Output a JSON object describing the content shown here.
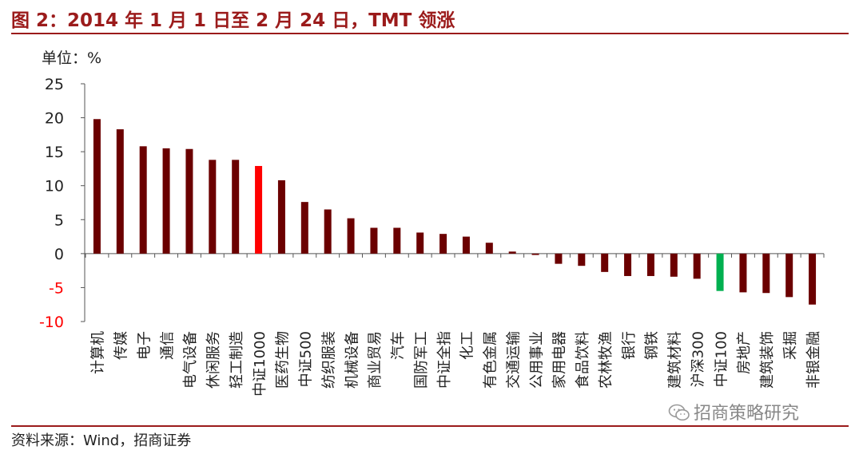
{
  "title": "图 2：2014 年 1 月 1 日至 2 月 24 日，TMT 领涨",
  "unit_label": "单位：%",
  "source": "资料来源：Wind，招商证券",
  "watermark": "招商策略研究",
  "watermark_icon": "wechat-icon",
  "colors": {
    "default": "#6b0000",
    "highlight_red": "#ff0000",
    "highlight_green": "#00b050",
    "axis": "#555555",
    "negative_tick": "#ff0000",
    "title": "#9b1b1b"
  },
  "chart_data": {
    "type": "bar",
    "categories": [
      "计算机",
      "传媒",
      "电子",
      "通信",
      "电气设备",
      "休闲服务",
      "轻工制造",
      "中证1000",
      "医药生物",
      "中证500",
      "纺织服装",
      "机械设备",
      "商业贸易",
      "汽车",
      "国防军工",
      "中证全指",
      "化工",
      "有色金属",
      "交通运输",
      "公用事业",
      "家用电器",
      "食品饮料",
      "农林牧渔",
      "银行",
      "钢铁",
      "建筑材料",
      "沪深300",
      "中证100",
      "房地产",
      "建筑装饰",
      "采掘",
      "非银金融"
    ],
    "values": [
      19.8,
      18.3,
      15.8,
      15.5,
      15.4,
      13.8,
      13.8,
      12.9,
      10.8,
      7.6,
      6.5,
      5.2,
      3.8,
      3.8,
      3.1,
      2.9,
      2.5,
      1.6,
      0.3,
      -0.2,
      -1.5,
      -1.8,
      -2.7,
      -3.3,
      -3.3,
      -3.4,
      -3.7,
      -5.5,
      -5.7,
      -5.8,
      -6.4,
      -7.5
    ],
    "highlight": {
      "中证1000": "red",
      "中证100": "green"
    },
    "ylim": [
      -10,
      25
    ],
    "yticks": [
      -10,
      -5,
      0,
      5,
      10,
      15,
      20,
      25
    ],
    "xlabel": "",
    "ylabel": "",
    "grid": false,
    "legend": "none"
  }
}
